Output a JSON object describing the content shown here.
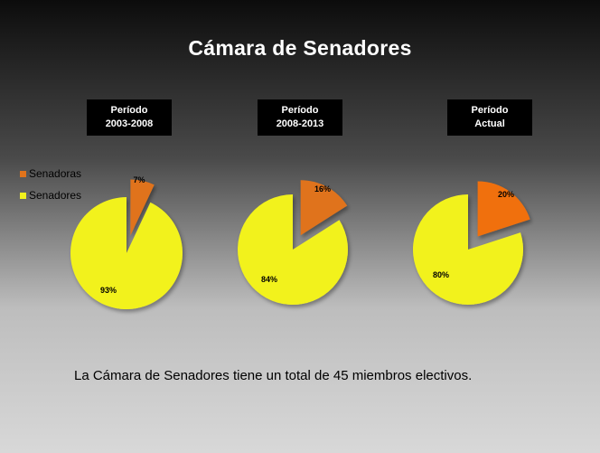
{
  "title": "Cámara de Senadores",
  "footer_text": "La Cámara de Senadores tiene un total de 45 miembros electivos.",
  "colors": {
    "senadoras": "#e0731b",
    "senadoras_bright": "#f07010",
    "senadores": "#f2f21e"
  },
  "chart_data": [
    {
      "type": "pie",
      "title_line1": "Período",
      "title_line2": "2003-2008",
      "categories": [
        "Senadoras",
        "Senadores"
      ],
      "values": [
        7,
        93
      ],
      "labels": [
        "7%",
        "93%"
      ]
    },
    {
      "type": "pie",
      "title_line1": "Período",
      "title_line2": "2008-2013",
      "categories": [
        "Senadoras",
        "Senadores"
      ],
      "values": [
        16,
        84
      ],
      "labels": [
        "16%",
        "84%"
      ]
    },
    {
      "type": "pie",
      "title_line1": "Período",
      "title_line2": "Actual",
      "categories": [
        "Senadoras",
        "Senadores"
      ],
      "values": [
        20,
        80
      ],
      "labels": [
        "20%",
        "80%"
      ]
    }
  ],
  "legend": [
    {
      "label": "Senadoras",
      "color": "#e0731b"
    },
    {
      "label": "Senadores",
      "color": "#f2f21e"
    }
  ]
}
